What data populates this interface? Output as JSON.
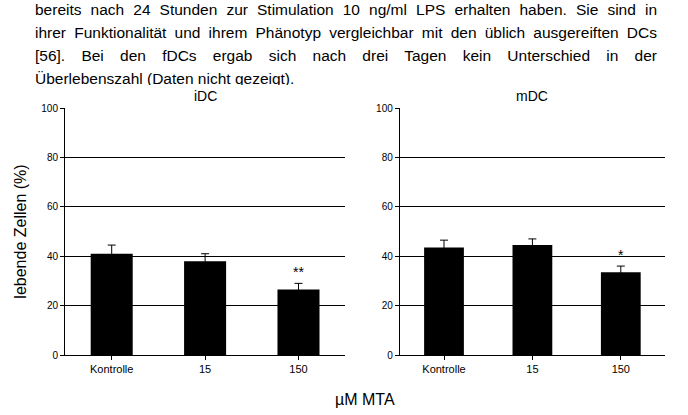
{
  "text": {
    "paragraph": [
      "bereits nach 24 Stunden zur Stimulation 10 ng/ml LPS erhalten haben. Sie sind in",
      "ihrer Funktionalität und ihrem Phänotyp vergleichbar mit den üblich ausgereiften DCs",
      "[56]. Bei den fDCs ergab sich nach drei Tagen kein Unterschied in der",
      "Überlebenszahl (Daten nicht gezeigt)."
    ]
  },
  "shared": {
    "y_label": "lebende Zellen (%)",
    "x_label": "µM MTA"
  },
  "chart_data": [
    {
      "type": "bar",
      "title": "iDC",
      "categories": [
        "Kontrolle",
        "15",
        "150"
      ],
      "values": [
        41,
        38,
        26.5
      ],
      "errors": [
        3.5,
        3,
        2.5
      ],
      "color": "#000000",
      "ylim": [
        0,
        100
      ],
      "yticks": [
        0,
        20,
        40,
        60,
        80,
        100
      ],
      "grid": true,
      "annotations": [
        {
          "category": "150",
          "text": "**"
        }
      ]
    },
    {
      "type": "bar",
      "title": "mDC",
      "categories": [
        "Kontrolle",
        "15",
        "150"
      ],
      "values": [
        43.5,
        44.5,
        33.5
      ],
      "errors": [
        3,
        2.5,
        2.5
      ],
      "color": "#000000",
      "ylim": [
        0,
        100
      ],
      "yticks": [
        0,
        20,
        40,
        60,
        80,
        100
      ],
      "grid": true,
      "annotations": [
        {
          "category": "150",
          "text": "*"
        }
      ]
    }
  ]
}
